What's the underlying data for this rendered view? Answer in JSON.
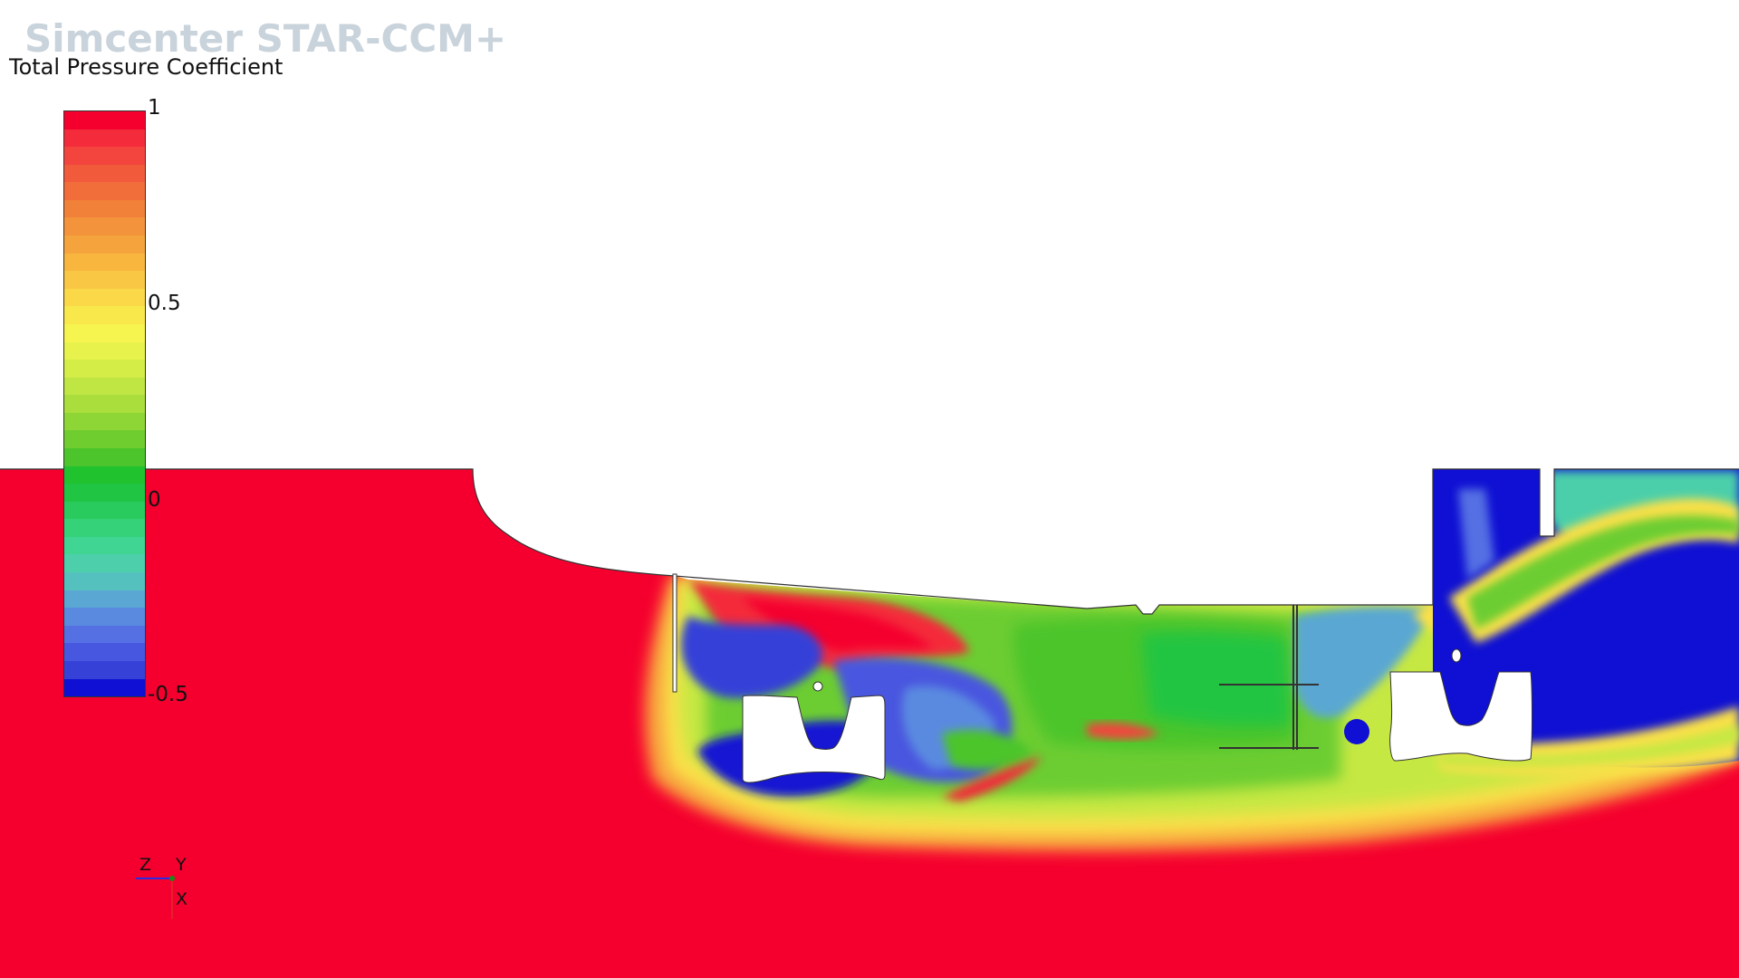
{
  "app": {
    "brand": "Simcenter STAR-CCM+"
  },
  "scene": {
    "scalar_title": "Total Pressure Coefficient",
    "colorbar": {
      "max": 1,
      "min": -0.5,
      "labels": [
        "1",
        "0.5",
        "0",
        "-0.5"
      ],
      "colors": [
        "#f5002e",
        "#f42b3b",
        "#f3443d",
        "#f25a3c",
        "#f16d3a",
        "#f18039",
        "#f3933b",
        "#f5a43d",
        "#f8b63f",
        "#f9c743",
        "#fad847",
        "#f9e84c",
        "#f6f44f",
        "#e7f24c",
        "#d4ed47",
        "#bfe642",
        "#a9de3c",
        "#8ed635",
        "#70cd2f",
        "#4cc52c",
        "#20c22e",
        "#20c543",
        "#2acb5e",
        "#35d27a",
        "#40d593",
        "#4ccfaa",
        "#55c1bf",
        "#5aa7d3",
        "#5a8ae0",
        "#5570e3",
        "#4857df",
        "#3641d8",
        "#0f10d3"
      ]
    },
    "field_colors": {
      "freestream": "#f5002e",
      "vortex_core": "#0f10d3",
      "body": "#ffffff"
    },
    "triad": {
      "labels": [
        "Z",
        "Y",
        "X"
      ]
    }
  }
}
